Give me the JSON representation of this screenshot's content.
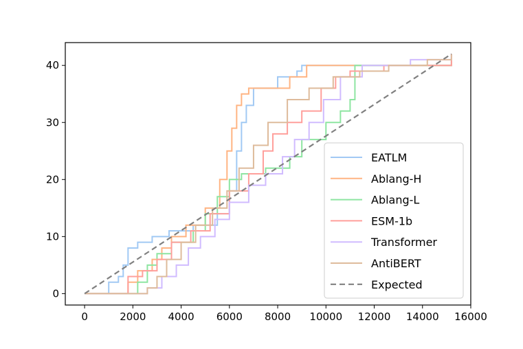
{
  "chart_data": {
    "type": "line",
    "title": "",
    "xlabel": "",
    "ylabel": "",
    "xlim": [
      -800,
      16000
    ],
    "ylim": [
      -2,
      44
    ],
    "xticks": [
      0,
      2000,
      4000,
      6000,
      8000,
      10000,
      12000,
      14000,
      16000
    ],
    "yticks": [
      0,
      10,
      20,
      30,
      40
    ],
    "xtick_labels": [
      "0",
      "2000",
      "4000",
      "6000",
      "8000",
      "10000",
      "12000",
      "14000",
      "16000"
    ],
    "ytick_labels": [
      "0",
      "10",
      "20",
      "30",
      "40"
    ],
    "grid": false,
    "legend_position": "lower-right",
    "step_plot": true,
    "series": [
      {
        "name": "EATLM",
        "color": "#a1c9f4",
        "dash": "",
        "x": [
          0,
          900,
          1000,
          1400,
          1600,
          1800,
          2200,
          2800,
          3500,
          4500,
          5500,
          6000,
          6300,
          6500,
          6700,
          7000,
          8000,
          8800,
          9000,
          15200
        ],
        "y": [
          0,
          0,
          2,
          3,
          5,
          8,
          9,
          10,
          11,
          12,
          14,
          18,
          25,
          30,
          33,
          36,
          38,
          39,
          40,
          42
        ]
      },
      {
        "name": "Ablang-H",
        "color": "#ffb482",
        "dash": "",
        "x": [
          0,
          1600,
          1800,
          2200,
          2800,
          3200,
          3600,
          4200,
          5000,
          5600,
          5900,
          6100,
          6300,
          6500,
          6800,
          7300,
          8500,
          9200,
          15200
        ],
        "y": [
          0,
          0,
          2,
          4,
          6,
          8,
          10,
          12,
          15,
          20,
          25,
          29,
          33,
          35,
          36,
          36,
          38,
          40,
          42
        ]
      },
      {
        "name": "Ablang-L",
        "color": "#8de5a1",
        "dash": "",
        "x": [
          0,
          1800,
          2200,
          2600,
          3000,
          3600,
          4500,
          5000,
          5500,
          6000,
          6500,
          7500,
          8500,
          9000,
          10000,
          10600,
          11000,
          11200,
          15200
        ],
        "y": [
          0,
          0,
          2,
          5,
          7,
          9,
          11,
          14,
          17,
          20,
          21,
          22,
          24,
          27,
          30,
          32,
          34,
          40,
          41
        ]
      },
      {
        "name": "ESM-1b",
        "color": "#ff9f9b",
        "dash": "",
        "x": [
          0,
          1400,
          1800,
          2400,
          3000,
          3600,
          4400,
          5200,
          6000,
          6800,
          7400,
          7800,
          8400,
          9000,
          9800,
          10400,
          11000,
          12400,
          15200
        ],
        "y": [
          0,
          0,
          3,
          4,
          6,
          9,
          11,
          14,
          18,
          21,
          25,
          28,
          30,
          32,
          36,
          38,
          39,
          40,
          42
        ]
      },
      {
        "name": "Transformer",
        "color": "#d0bbff",
        "dash": "",
        "x": [
          0,
          2400,
          2600,
          3200,
          3800,
          4300,
          4800,
          5400,
          6000,
          6800,
          7500,
          8200,
          8700,
          9300,
          9900,
          10600,
          11500,
          13500,
          15200
        ],
        "y": [
          0,
          0,
          1,
          3,
          5,
          8,
          10,
          13,
          16,
          19,
          21,
          24,
          27,
          30,
          34,
          38,
          40,
          41,
          42
        ]
      },
      {
        "name": "AntiBERT",
        "color": "#debb9b",
        "dash": "",
        "x": [
          0,
          2200,
          2600,
          3000,
          3400,
          4000,
          4600,
          5300,
          5900,
          6400,
          7000,
          7600,
          8400,
          9300,
          10300,
          11400,
          12600,
          14200,
          15200
        ],
        "y": [
          0,
          0,
          1,
          3,
          6,
          9,
          12,
          15,
          18,
          22,
          26,
          30,
          34,
          36,
          38,
          39,
          40,
          41,
          42
        ]
      },
      {
        "name": "Expected",
        "color": "#808080",
        "dash": "8,5",
        "x": [
          0,
          15200
        ],
        "y": [
          0,
          42
        ]
      }
    ]
  }
}
